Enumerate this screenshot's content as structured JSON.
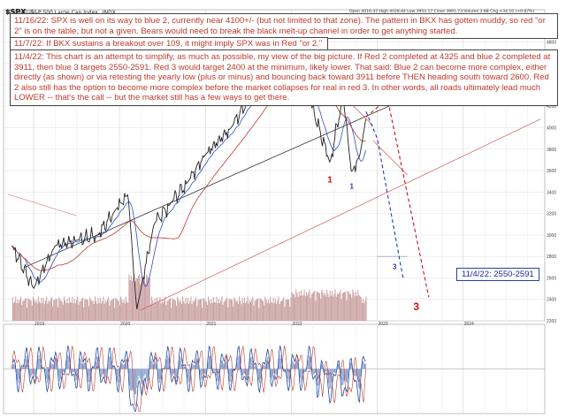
{
  "header": {
    "ticker": "$SPX",
    "name": "S&P 500 Large Cap Index",
    "exchange": "INDX",
    "date": "15-Nov-2022",
    "quote": "Open 4016.47  High 4028.84  Low 3953.17  Close 3991.73  Volume 3.6B  Chg +34.10 (+0.87%)"
  },
  "notes": [
    "11/16/22:  SPX is well on its way to blue 2, currently near 4100+/- (but not limited to that zone).  The pattern in BKX has gotten muddy, so red \"or 2\" is on the table, but not a given.  Bears would need to break the black melt-up channel in order to get anything started.",
    "11/7/22:  If BKX sustains a breakout over 109, it might imply SPX was in Red \"or 2.\"",
    "11/4/22:  This chart is an attempt to simplify, as much as possible, my view of the big picture.  If Red 2 completed at 4325 and blue 2 completed at 3911, then blue 3 targets 2550-2591.  Red 3 would target 2400 at the minimum, likely lower.  That said:  Blue 2 can become more complex, either directly (as shown) or via retesting the yearly low (plus or minus) and bouncing back toward 3911 before THEN heading south toward 2600.  Red 2 also still has the option to become more complex before the market collapses for real in red 3.  In other words, all roads ultimately lead much LOWER -- that's the call -- but the market still has a few ways to get there."
  ],
  "target_box": "11/4/22: 2550-2591",
  "wave_labels": {
    "red_1": "1",
    "red_2": "2",
    "red_or_2": "or 2",
    "red_3": "3",
    "blue_1": "1",
    "blue_2": "2",
    "blue_3": "3"
  },
  "colors": {
    "price": "#222222",
    "ma_fast": "#2b50c8",
    "ma_slow": "#c0392b",
    "volume": "#c9a0a0",
    "red_wave": "#cc1111",
    "blue_wave": "#1f3bb3",
    "macd": "#1f4fa8",
    "signal": "#c0392b"
  },
  "chart_data": {
    "type": "line",
    "title": "$SPX S&P 500 Large Cap Index INDX",
    "x": [
      2018.75,
      2019.0,
      2019.25,
      2019.5,
      2019.75,
      2019.95,
      2020.1,
      2020.2,
      2020.25,
      2020.4,
      2020.6,
      2020.8,
      2021.0,
      2021.3,
      2021.6,
      2021.9,
      2022.0,
      2022.2,
      2022.45,
      2022.6,
      2022.7,
      2022.8,
      2022.87
    ],
    "series": [
      {
        "name": "$SPX",
        "values": [
          2900,
          2500,
          2900,
          2950,
          3000,
          3230,
          3380,
          2300,
          2500,
          3100,
          3300,
          3500,
          3750,
          4000,
          4400,
          4700,
          4800,
          4300,
          3670,
          4300,
          3580,
          3750,
          4100
        ]
      }
    ],
    "ylim": [
      2200,
      5100
    ],
    "y_ticks": [
      2200,
      2400,
      2600,
      2800,
      3000,
      3200,
      3400,
      3600,
      3800,
      4000,
      4200,
      4400,
      4600,
      4800,
      5000
    ],
    "x_tick_labels": [
      "2019",
      "2020",
      "2021",
      "2022",
      "2023",
      "2024"
    ],
    "macd_ylim": [
      -100,
      100
    ],
    "grid": true,
    "legend": "top-left"
  }
}
